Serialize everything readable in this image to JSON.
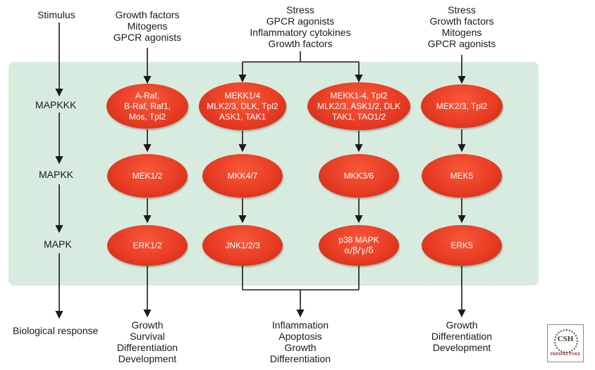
{
  "row_labels": {
    "stimulus": "Stimulus",
    "mapkkk": "MAPKKK",
    "mapkk": "MAPKK",
    "mapk": "MAPK",
    "response": "Biological response"
  },
  "stimuli": {
    "erk": [
      "Growth factors",
      "Mitogens",
      "GPCR agonists"
    ],
    "stress_shared": [
      "Stress",
      "GPCR agonists",
      "Inflammatory cytokines",
      "Growth factors"
    ],
    "erk5": [
      "Stress",
      "Growth factors",
      "Mitogens",
      "GPCR agonists"
    ]
  },
  "mapkkk": {
    "erk": [
      "A-Raf,",
      "B-Raf, Raf1,",
      "Mos, Tpl2"
    ],
    "jnk": [
      "MEKK1/4",
      "MLK2/3, DLK, Tpl2",
      "ASK1, TAK1"
    ],
    "p38": [
      "MEKK1-4, Tpl2",
      "MLK2/3, ASK1/2, DLK",
      "TAK1, TAO1/2"
    ],
    "erk5": [
      "MEK2/3, Tpl2"
    ]
  },
  "mapkk": {
    "erk": "MEK1/2",
    "jnk": "MKK4/7",
    "p38": "MKK3/6",
    "erk5": "MEK5"
  },
  "mapk": {
    "erk": "ERK1/2",
    "jnk": "JNK1/2/3",
    "p38_line1": "p38 MAPK",
    "p38_line2": "α/β/γ/δ",
    "erk5": "ERK5"
  },
  "responses": {
    "erk": [
      "Growth",
      "Survival",
      "Differentiation",
      "Development"
    ],
    "stress_shared": [
      "Inflammation",
      "Apoptosis",
      "Growth",
      "Differentiation"
    ],
    "erk5": [
      "Growth",
      "Differentiation",
      "Development"
    ]
  },
  "logo": {
    "main": "CSH",
    "sub": "PERSPECTIVES"
  },
  "colors": {
    "panel": "#d7ebde",
    "node": "#e83d24",
    "arrow": "#1a1a1a"
  }
}
